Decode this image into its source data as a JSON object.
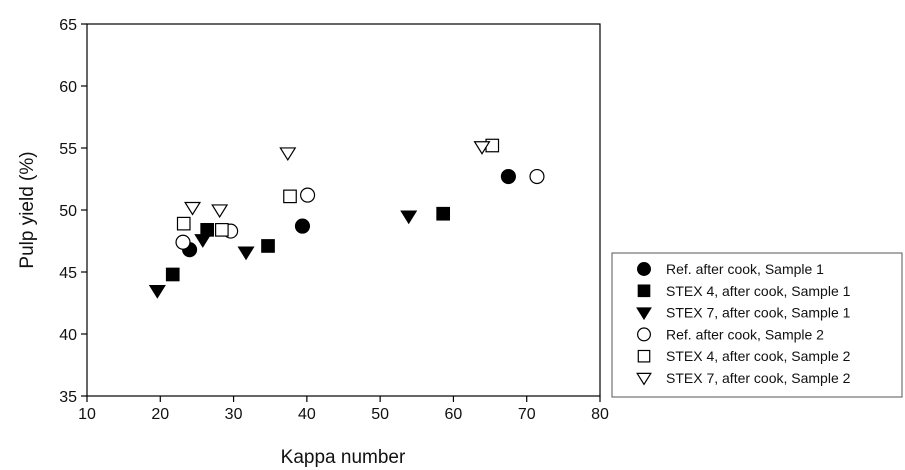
{
  "chart_data": {
    "type": "scatter",
    "title": "",
    "xlabel": "Kappa number",
    "ylabel": "Pulp yield (%)",
    "xlim": [
      10,
      80
    ],
    "ylim": [
      35,
      65
    ],
    "xticks": [
      10,
      20,
      30,
      40,
      50,
      60,
      70,
      80
    ],
    "yticks": [
      35,
      40,
      45,
      50,
      55,
      60,
      65
    ],
    "grid": false,
    "legend_position": "right",
    "series": [
      {
        "name": "Ref. after cook, Sample 1",
        "marker": "circle",
        "filled": true,
        "points": [
          [
            24.0,
            46.8
          ],
          [
            39.4,
            48.7
          ],
          [
            67.5,
            52.7
          ]
        ]
      },
      {
        "name": "STEX 4, after cook, Sample 1",
        "marker": "square",
        "filled": true,
        "points": [
          [
            21.7,
            44.8
          ],
          [
            26.4,
            48.4
          ],
          [
            34.7,
            47.1
          ],
          [
            58.6,
            49.7
          ]
        ]
      },
      {
        "name": "STEX 7, after cook, Sample 1",
        "marker": "triangle-down",
        "filled": true,
        "points": [
          [
            19.6,
            43.5
          ],
          [
            25.8,
            47.6
          ],
          [
            31.7,
            46.6
          ],
          [
            53.9,
            49.5
          ]
        ]
      },
      {
        "name": "Ref. after cook, Sample 2",
        "marker": "circle",
        "filled": false,
        "points": [
          [
            23.1,
            47.4
          ],
          [
            29.6,
            48.3
          ],
          [
            40.1,
            51.2
          ],
          [
            71.4,
            52.7
          ]
        ]
      },
      {
        "name": "STEX 4, after cook, Sample 2",
        "marker": "square",
        "filled": false,
        "points": [
          [
            23.2,
            48.9
          ],
          [
            28.4,
            48.4
          ],
          [
            37.7,
            51.1
          ],
          [
            65.3,
            55.2
          ]
        ]
      },
      {
        "name": "STEX 7, after cook, Sample 2",
        "marker": "triangle-down",
        "filled": false,
        "points": [
          [
            24.4,
            50.2
          ],
          [
            28.1,
            50.0
          ],
          [
            37.4,
            54.6
          ],
          [
            63.9,
            55.1
          ]
        ]
      }
    ],
    "colors": {
      "marker": "#000000",
      "axis": "#000000",
      "background": "#ffffff"
    }
  }
}
